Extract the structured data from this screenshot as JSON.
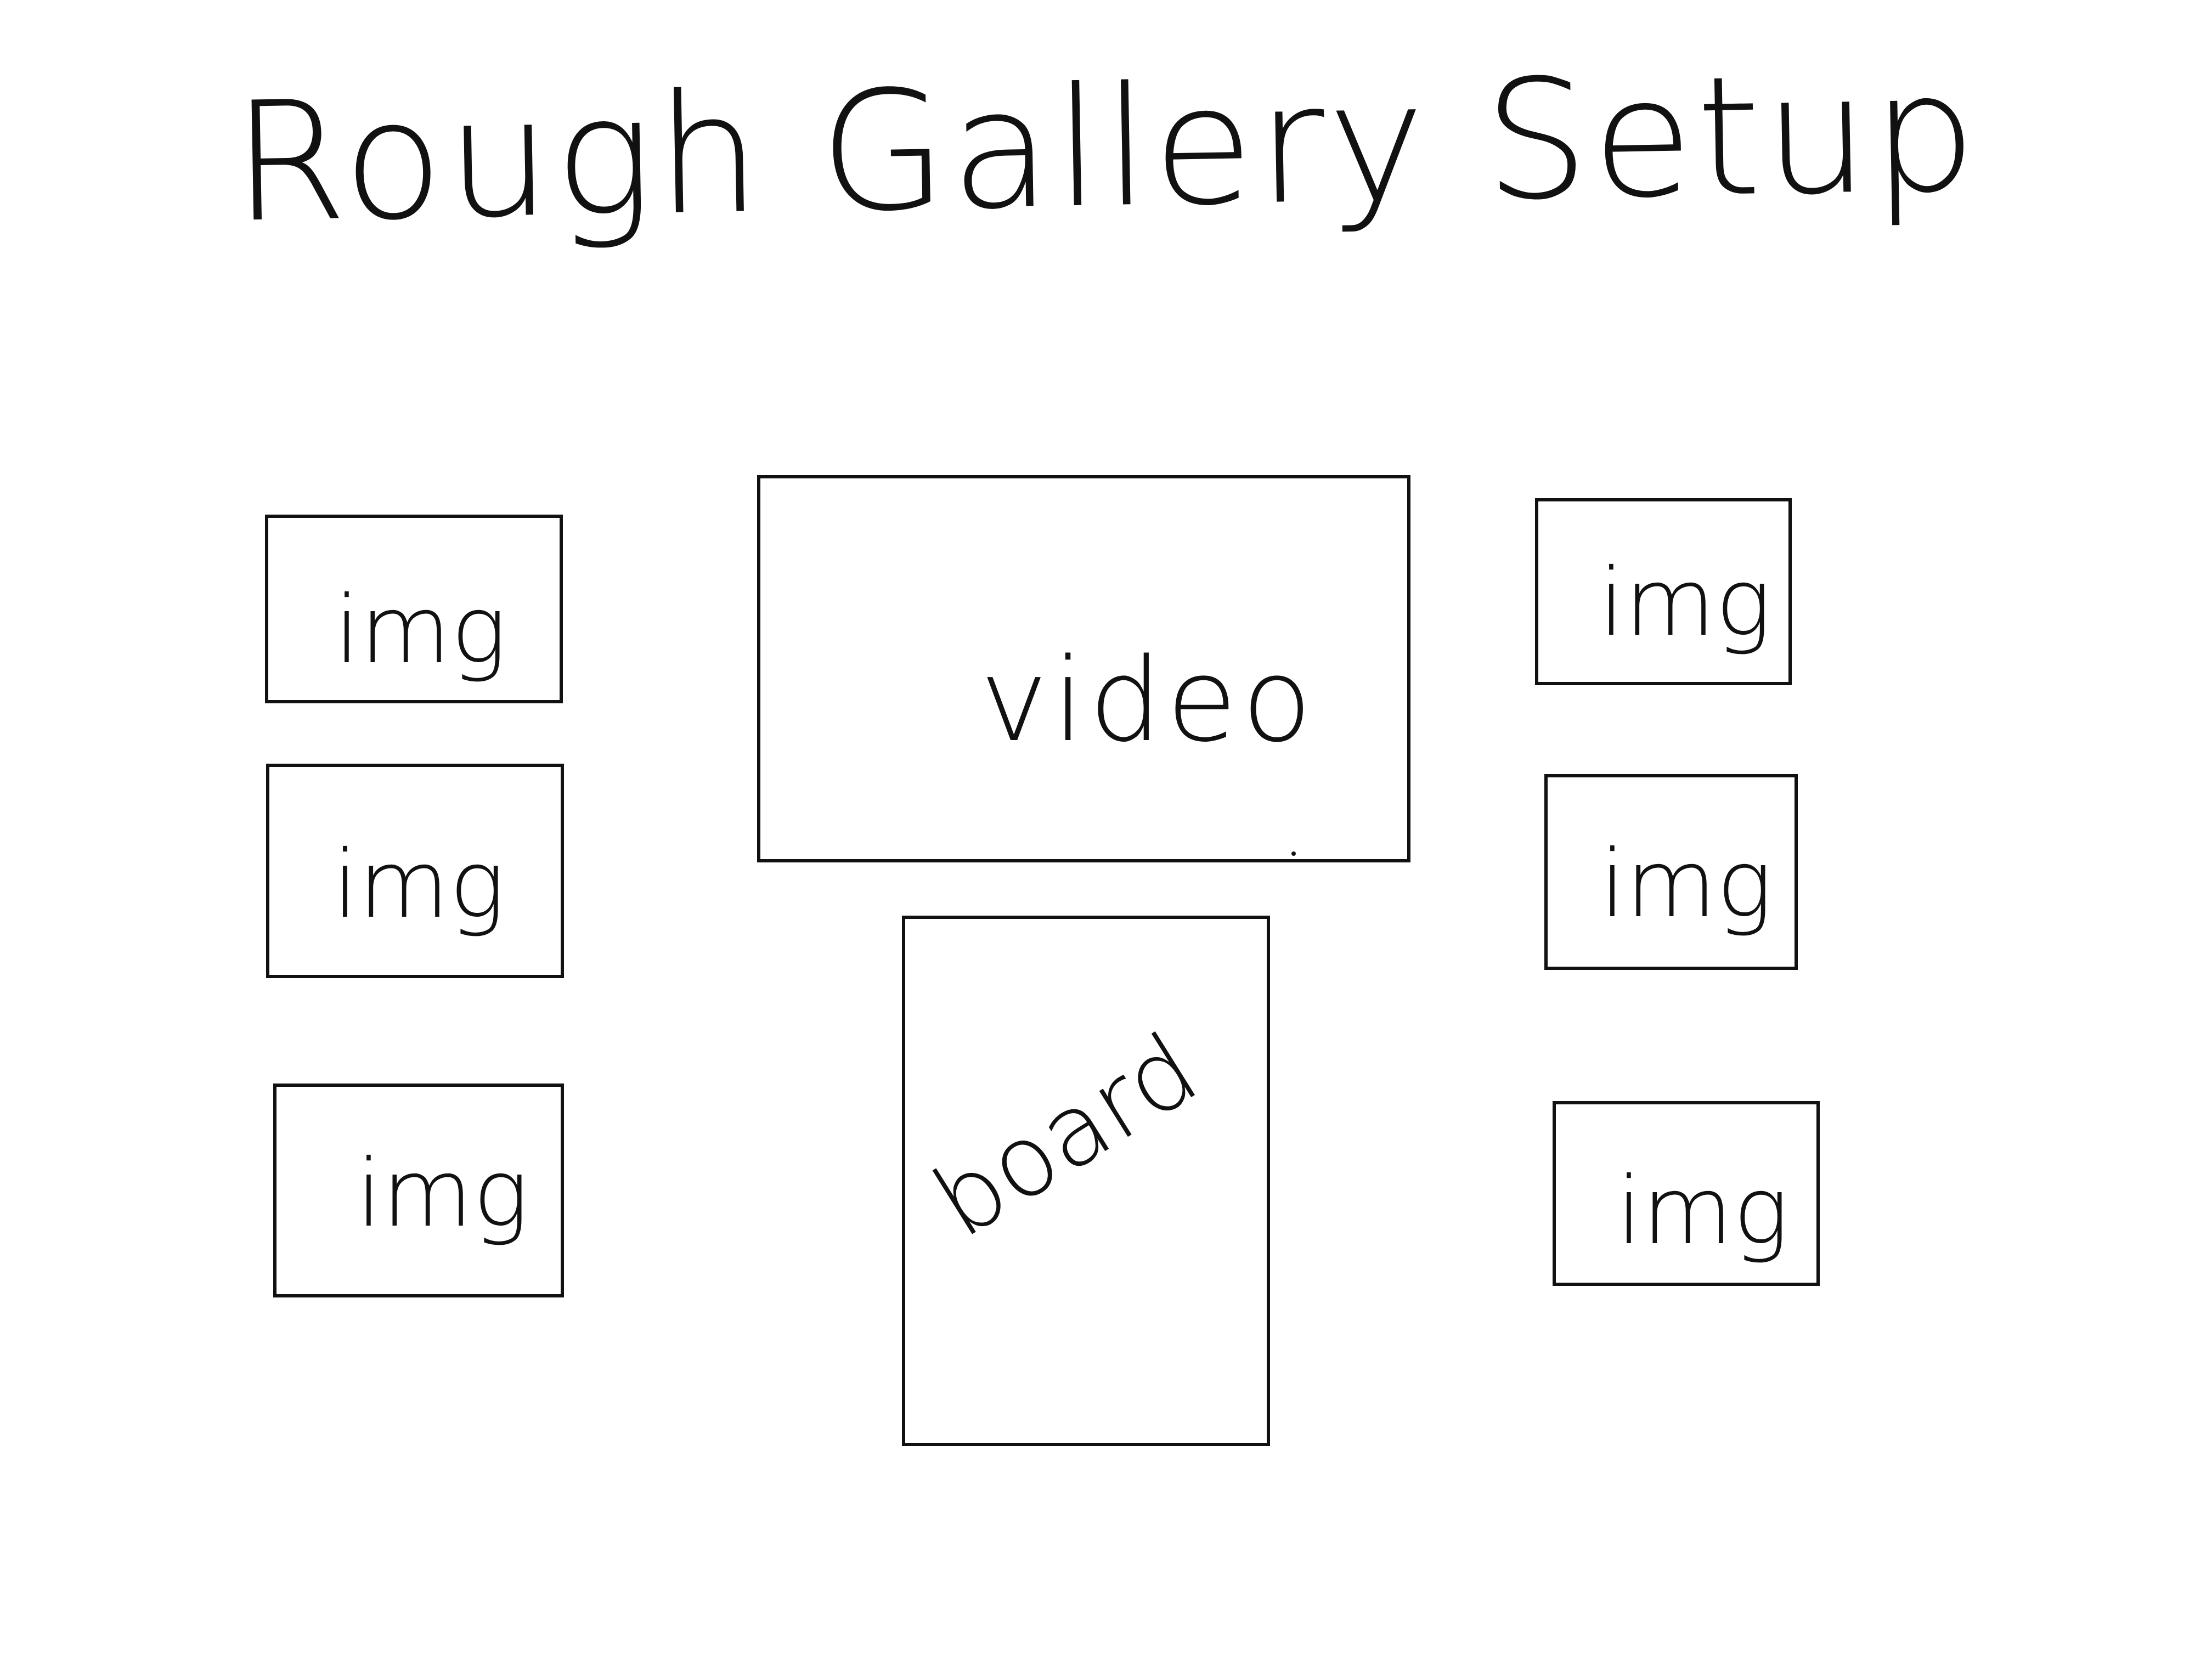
{
  "title": "Rough Gallery Setup",
  "boxes": {
    "left_1": {
      "label": "img"
    },
    "left_2": {
      "label": "img"
    },
    "left_3": {
      "label": "img"
    },
    "video": {
      "label": "video"
    },
    "board": {
      "label": "board"
    },
    "right_1": {
      "label": "img"
    },
    "right_2": {
      "label": "img"
    },
    "right_3": {
      "label": "img"
    }
  },
  "colors": {
    "ink": "#111111",
    "background": "#ffffff"
  }
}
